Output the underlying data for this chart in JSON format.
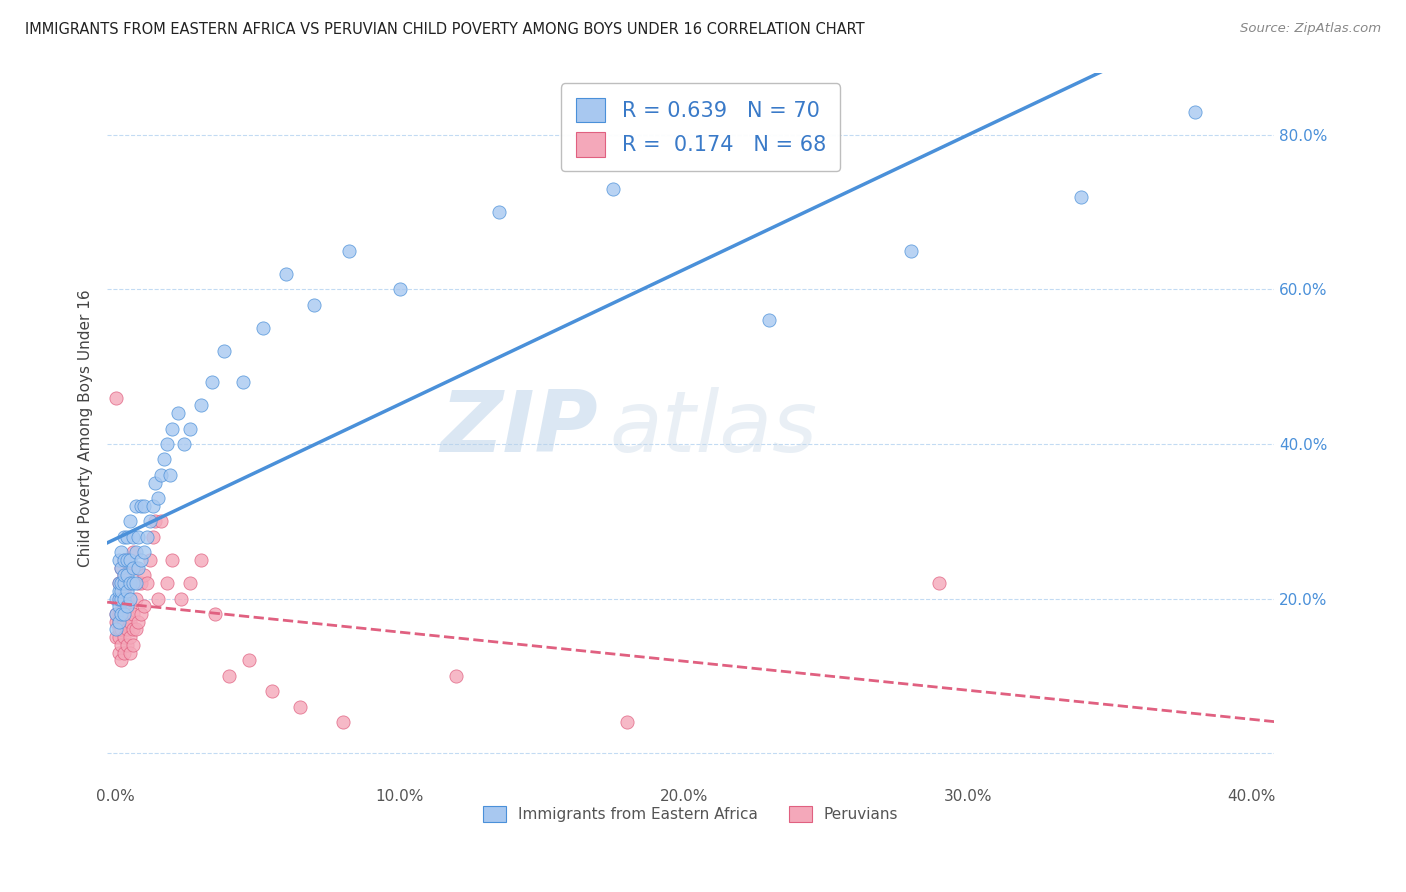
{
  "title": "IMMIGRANTS FROM EASTERN AFRICA VS PERUVIAN CHILD POVERTY AMONG BOYS UNDER 16 CORRELATION CHART",
  "source": "Source: ZipAtlas.com",
  "ylabel": "Child Poverty Among Boys Under 16",
  "xlim": [
    -0.003,
    0.408
  ],
  "ylim": [
    -0.04,
    0.88
  ],
  "xticks": [
    0.0,
    0.1,
    0.2,
    0.3,
    0.4
  ],
  "xtick_labels": [
    "0.0%",
    "10.0%",
    "20.0%",
    "30.0%",
    "40.0%"
  ],
  "ytick_positions": [
    0.0,
    0.2,
    0.4,
    0.6,
    0.8
  ],
  "ytick_labels": [
    "",
    "20.0%",
    "40.0%",
    "60.0%",
    "80.0%"
  ],
  "R_blue": 0.639,
  "N_blue": 70,
  "R_pink": 0.174,
  "N_pink": 68,
  "blue_color": "#A8C8F0",
  "pink_color": "#F4A8BA",
  "blue_line_color": "#4A90D9",
  "pink_line_color": "#E06080",
  "watermark_zip": "ZIP",
  "watermark_atlas": "atlas",
  "blue_scatter_x": [
    0.0,
    0.0,
    0.0,
    0.001,
    0.001,
    0.001,
    0.001,
    0.001,
    0.001,
    0.002,
    0.002,
    0.002,
    0.002,
    0.002,
    0.002,
    0.003,
    0.003,
    0.003,
    0.003,
    0.003,
    0.003,
    0.004,
    0.004,
    0.004,
    0.004,
    0.004,
    0.005,
    0.005,
    0.005,
    0.005,
    0.006,
    0.006,
    0.006,
    0.007,
    0.007,
    0.007,
    0.008,
    0.008,
    0.009,
    0.009,
    0.01,
    0.01,
    0.011,
    0.012,
    0.013,
    0.014,
    0.015,
    0.016,
    0.017,
    0.018,
    0.019,
    0.02,
    0.022,
    0.024,
    0.026,
    0.03,
    0.034,
    0.038,
    0.045,
    0.052,
    0.06,
    0.07,
    0.082,
    0.1,
    0.135,
    0.175,
    0.23,
    0.28,
    0.34,
    0.38
  ],
  "blue_scatter_y": [
    0.16,
    0.18,
    0.2,
    0.17,
    0.19,
    0.2,
    0.21,
    0.22,
    0.25,
    0.18,
    0.2,
    0.21,
    0.22,
    0.24,
    0.26,
    0.18,
    0.2,
    0.22,
    0.23,
    0.25,
    0.28,
    0.19,
    0.21,
    0.23,
    0.25,
    0.28,
    0.2,
    0.22,
    0.25,
    0.3,
    0.22,
    0.24,
    0.28,
    0.22,
    0.26,
    0.32,
    0.24,
    0.28,
    0.25,
    0.32,
    0.26,
    0.32,
    0.28,
    0.3,
    0.32,
    0.35,
    0.33,
    0.36,
    0.38,
    0.4,
    0.36,
    0.42,
    0.44,
    0.4,
    0.42,
    0.45,
    0.48,
    0.52,
    0.48,
    0.55,
    0.62,
    0.58,
    0.65,
    0.6,
    0.7,
    0.73,
    0.56,
    0.65,
    0.72,
    0.83
  ],
  "pink_scatter_x": [
    0.0,
    0.0,
    0.0,
    0.0,
    0.001,
    0.001,
    0.001,
    0.001,
    0.001,
    0.001,
    0.001,
    0.002,
    0.002,
    0.002,
    0.002,
    0.002,
    0.002,
    0.002,
    0.003,
    0.003,
    0.003,
    0.003,
    0.003,
    0.003,
    0.003,
    0.004,
    0.004,
    0.004,
    0.004,
    0.004,
    0.005,
    0.005,
    0.005,
    0.005,
    0.005,
    0.006,
    0.006,
    0.006,
    0.006,
    0.007,
    0.007,
    0.007,
    0.008,
    0.008,
    0.009,
    0.009,
    0.01,
    0.01,
    0.011,
    0.012,
    0.013,
    0.014,
    0.015,
    0.016,
    0.018,
    0.02,
    0.023,
    0.026,
    0.03,
    0.035,
    0.04,
    0.047,
    0.055,
    0.065,
    0.08,
    0.12,
    0.18,
    0.29
  ],
  "pink_scatter_y": [
    0.46,
    0.15,
    0.17,
    0.18,
    0.13,
    0.15,
    0.16,
    0.17,
    0.18,
    0.2,
    0.22,
    0.12,
    0.14,
    0.16,
    0.18,
    0.2,
    0.22,
    0.24,
    0.13,
    0.15,
    0.17,
    0.19,
    0.21,
    0.23,
    0.25,
    0.14,
    0.16,
    0.18,
    0.2,
    0.22,
    0.13,
    0.15,
    0.17,
    0.19,
    0.24,
    0.14,
    0.16,
    0.18,
    0.26,
    0.16,
    0.2,
    0.24,
    0.17,
    0.22,
    0.18,
    0.22,
    0.19,
    0.23,
    0.22,
    0.25,
    0.28,
    0.3,
    0.2,
    0.3,
    0.22,
    0.25,
    0.2,
    0.22,
    0.25,
    0.18,
    0.1,
    0.12,
    0.08,
    0.06,
    0.04,
    0.1,
    0.04,
    0.22
  ]
}
